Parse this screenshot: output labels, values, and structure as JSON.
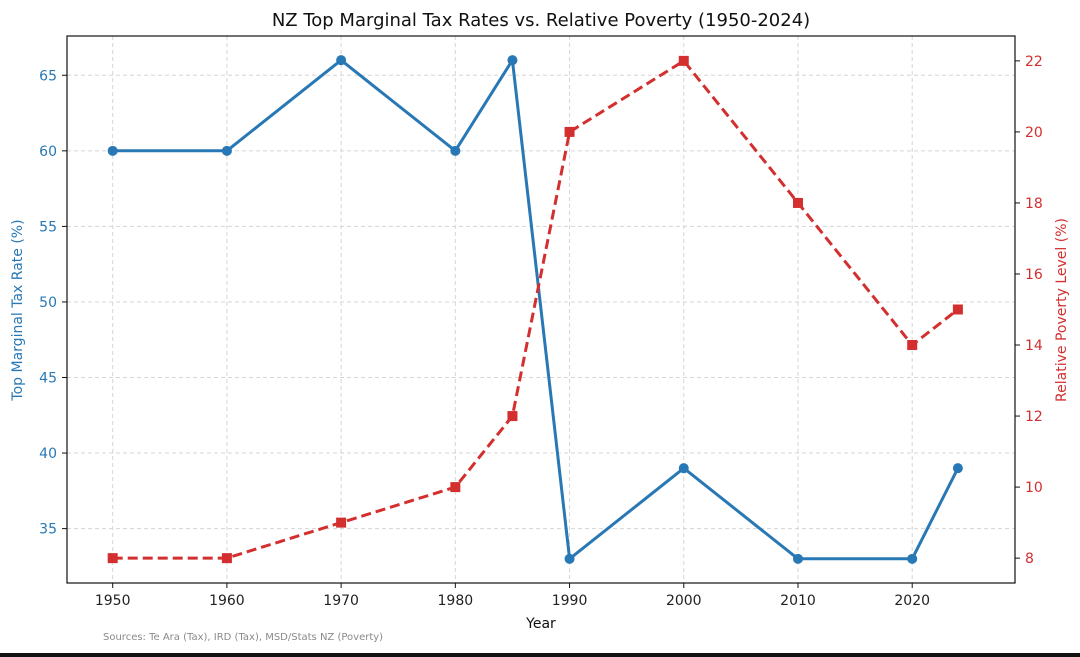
{
  "chart_data": {
    "type": "line",
    "title": "NZ Top Marginal Tax Rates vs. Relative Poverty (1950-2024)",
    "xlabel": "Year",
    "x": [
      1950,
      1960,
      1970,
      1980,
      1985,
      1990,
      2000,
      2010,
      2020,
      2024
    ],
    "x_ticks": [
      "1950",
      "1960",
      "1970",
      "1980",
      "1990",
      "2000",
      "2010",
      "2020"
    ],
    "xlim": [
      1946,
      2029
    ],
    "grid": true,
    "series": [
      {
        "axis": "left",
        "ylabel": "Top Marginal Tax Rate (%)",
        "values": [
          60,
          60,
          66,
          60,
          66,
          33,
          39,
          33,
          33,
          39
        ],
        "color": "#2878b5",
        "style": "solid",
        "marker": "circle",
        "ylim": [
          31.4,
          67.6
        ],
        "y_ticks": [
          "35",
          "40",
          "45",
          "50",
          "55",
          "60",
          "65"
        ]
      },
      {
        "axis": "right",
        "ylabel": "Relative Poverty Level (%)",
        "values": [
          8,
          8,
          9,
          10,
          12,
          20,
          22,
          18,
          14,
          15
        ],
        "color": "#d32f2f",
        "style": "dashed",
        "marker": "square",
        "ylim": [
          7.3,
          22.7
        ],
        "y_ticks": [
          "8",
          "10",
          "12",
          "14",
          "16",
          "18",
          "20",
          "22"
        ]
      }
    ],
    "source_note": "Sources: Te Ara (Tax), IRD (Tax), MSD/Stats NZ (Poverty)"
  }
}
